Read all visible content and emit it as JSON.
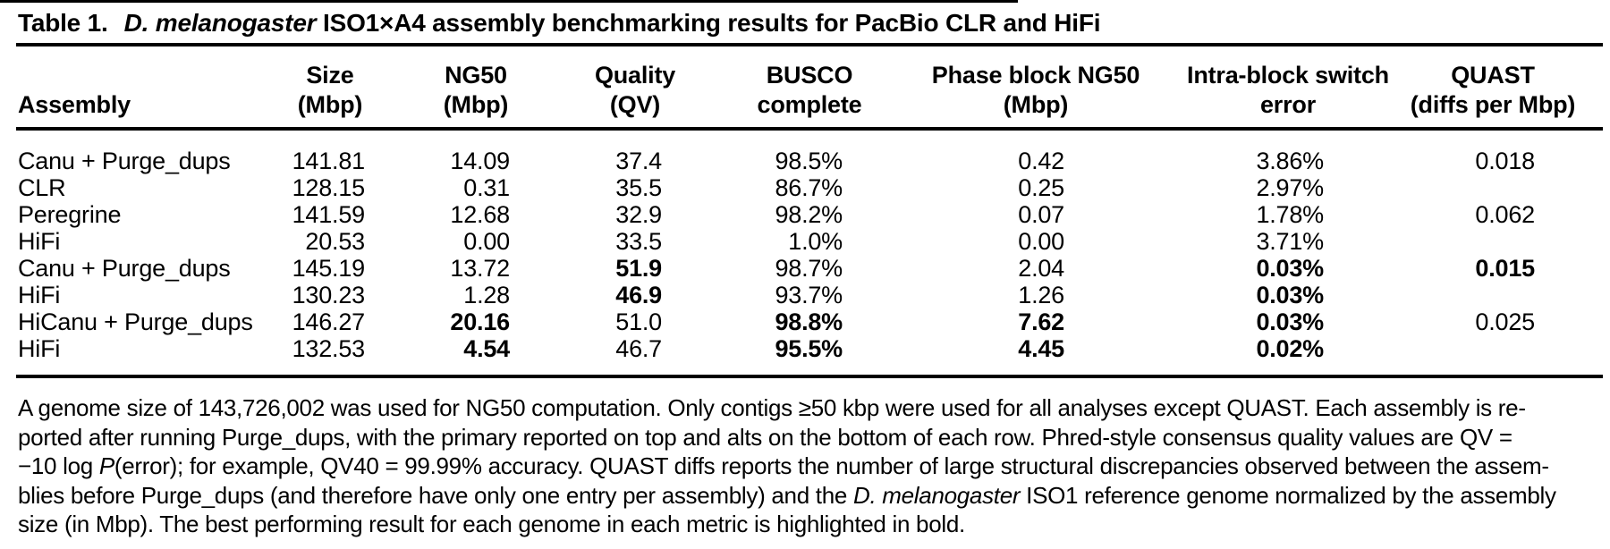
{
  "title": {
    "label": "Table 1.",
    "species": "D. melanogaster",
    "rest": "ISO1×A4 assembly benchmarking results for PacBio CLR and HiFi"
  },
  "table": {
    "columns": {
      "assembly": {
        "line1": "",
        "line2": "Assembly"
      },
      "size": {
        "line1": "Size",
        "line2": "(Mbp)"
      },
      "ng50": {
        "line1": "NG50",
        "line2": "(Mbp)"
      },
      "quality": {
        "line1": "Quality",
        "line2": "(QV)"
      },
      "busco": {
        "line1": "BUSCO",
        "line2": "complete"
      },
      "phase": {
        "line1": "Phase block NG50",
        "line2": "(Mbp)"
      },
      "switch": {
        "line1": "Intra-block switch",
        "line2": "error"
      },
      "quast": {
        "line1": "QUAST",
        "line2": "(diffs per Mbp)"
      }
    },
    "rows": [
      {
        "assembly": "Canu + Purge_dups",
        "size": "141.81",
        "ng50": "14.09",
        "quality": "37.4",
        "busco": "98.5%",
        "phase": "0.42",
        "switch": "3.86%",
        "quast": "0.018",
        "bold": []
      },
      {
        "assembly": "CLR",
        "size": "128.15",
        "ng50": "0.31",
        "quality": "35.5",
        "busco": "86.7%",
        "phase": "0.25",
        "switch": "2.97%",
        "quast": "",
        "bold": []
      },
      {
        "assembly": "Peregrine",
        "size": "141.59",
        "ng50": "12.68",
        "quality": "32.9",
        "busco": "98.2%",
        "phase": "0.07",
        "switch": "1.78%",
        "quast": "0.062",
        "bold": []
      },
      {
        "assembly": "HiFi",
        "size": "20.53",
        "ng50": "0.00",
        "quality": "33.5",
        "busco": "1.0%",
        "phase": "0.00",
        "switch": "3.71%",
        "quast": "",
        "bold": []
      },
      {
        "assembly": "Canu + Purge_dups",
        "size": "145.19",
        "ng50": "13.72",
        "quality": "51.9",
        "busco": "98.7%",
        "phase": "2.04",
        "switch": "0.03%",
        "quast": "0.015",
        "bold": [
          "quality",
          "switch",
          "quast"
        ]
      },
      {
        "assembly": "HiFi",
        "size": "130.23",
        "ng50": "1.28",
        "quality": "46.9",
        "busco": "93.7%",
        "phase": "1.26",
        "switch": "0.03%",
        "quast": "",
        "bold": [
          "quality",
          "switch"
        ]
      },
      {
        "assembly": "HiCanu + Purge_dups",
        "size": "146.27",
        "ng50": "20.16",
        "quality": "51.0",
        "busco": "98.8%",
        "phase": "7.62",
        "switch": "0.03%",
        "quast": "0.025",
        "bold": [
          "ng50",
          "busco",
          "phase",
          "switch"
        ]
      },
      {
        "assembly": "HiFi",
        "size": "132.53",
        "ng50": "4.54",
        "quality": "46.7",
        "busco": "95.5%",
        "phase": "4.45",
        "switch": "0.02%",
        "quast": "",
        "bold": [
          "ng50",
          "busco",
          "phase",
          "switch"
        ]
      }
    ]
  },
  "footnote": {
    "l1": "A genome size of 143,726,002 was used for NG50 computation. Only contigs ≥50 kbp were used for all analyses except QUAST. Each assembly is re-",
    "l2": "ported after running Purge_dups, with the primary reported on top and alts on the bottom of each row. Phred-style consensus quality values are QV =",
    "l3pre": "−10 log ",
    "l3it": "P",
    "l3post": "(error); for example, QV40 = 99.99% accuracy. QUAST diffs reports the number of large structural discrepancies observed between the assem-",
    "l4pre": "blies before Purge_dups (and therefore have only one entry per assembly) and the ",
    "l4it": "D. melanogaster",
    "l4post": " ISO1 reference genome normalized by the assembly",
    "l5": "size (in Mbp). The best performing result for each genome in each metric is highlighted in bold."
  }
}
